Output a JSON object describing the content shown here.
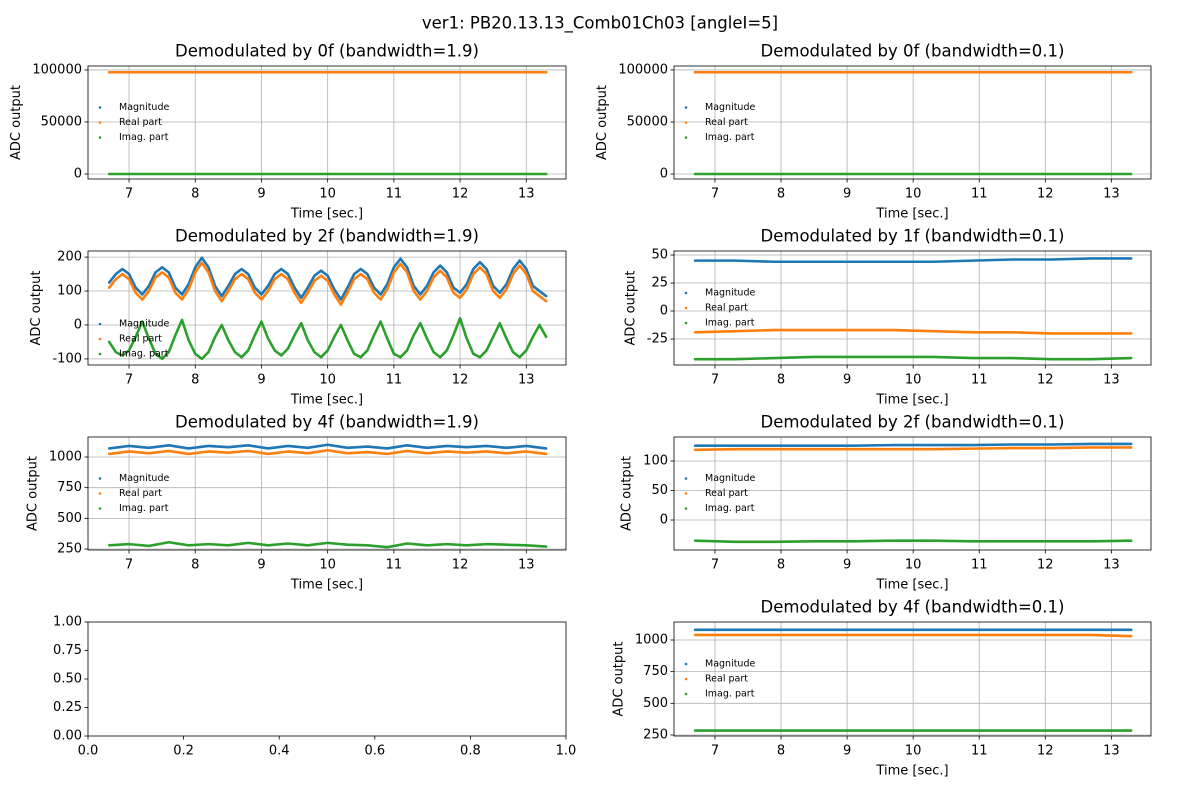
{
  "title": "ver1: PB20.13.13_Comb01Ch03 [angleI=5]",
  "chart_data": [
    {
      "type": "line",
      "title": "Demodulated by 0f (bandwidth=1.9)",
      "xlabel": "Time [sec.]",
      "ylabel": "ADC output",
      "grid": true,
      "legend": "center left",
      "xlim": [
        6.38,
        13.6
      ],
      "xticks": [
        7,
        8,
        9,
        10,
        11,
        12,
        13
      ],
      "ylim": [
        -4800,
        103800
      ],
      "yticks": [
        0,
        50000,
        100000
      ],
      "x": [
        6.7,
        7.3,
        7.9,
        8.5,
        9.1,
        9.7,
        10.3,
        10.9,
        11.5,
        12.1,
        12.7,
        13.3
      ],
      "series": [
        {
          "name": "Magnitude",
          "color": "#1f77b4",
          "values": [
            97800,
            97800,
            97800,
            97800,
            97800,
            97800,
            97800,
            97800,
            97800,
            97800,
            97800,
            97800
          ]
        },
        {
          "name": "Real part",
          "color": "#ff7f0e",
          "values": [
            97800,
            97800,
            97800,
            97800,
            97800,
            97800,
            97800,
            97800,
            97800,
            97800,
            97800,
            97800
          ]
        },
        {
          "name": "Imag. part",
          "color": "#2ca02c",
          "values": [
            0,
            0,
            0,
            0,
            0,
            0,
            0,
            0,
            0,
            0,
            0,
            0
          ]
        }
      ]
    },
    {
      "type": "line",
      "title": "Demodulated by 0f (bandwidth=0.1)",
      "xlabel": "Time [sec.]",
      "ylabel": "ADC output",
      "grid": true,
      "legend": "center left",
      "xlim": [
        6.38,
        13.6
      ],
      "xticks": [
        7,
        8,
        9,
        10,
        11,
        12,
        13
      ],
      "ylim": [
        -4800,
        103800
      ],
      "yticks": [
        0,
        50000,
        100000
      ],
      "x": [
        6.7,
        7.3,
        7.9,
        8.5,
        9.1,
        9.7,
        10.3,
        10.9,
        11.5,
        12.1,
        12.7,
        13.3
      ],
      "series": [
        {
          "name": "Magnitude",
          "color": "#1f77b4",
          "values": [
            97800,
            97800,
            97800,
            97800,
            97800,
            97800,
            97800,
            97800,
            97800,
            97800,
            97800,
            97800
          ]
        },
        {
          "name": "Real part",
          "color": "#ff7f0e",
          "values": [
            97800,
            97800,
            97800,
            97800,
            97800,
            97800,
            97800,
            97800,
            97800,
            97800,
            97800,
            97800
          ]
        },
        {
          "name": "Imag. part",
          "color": "#2ca02c",
          "values": [
            0,
            0,
            0,
            0,
            0,
            0,
            0,
            0,
            0,
            0,
            0,
            0
          ]
        }
      ]
    },
    {
      "type": "line",
      "title": "Demodulated by 2f (bandwidth=1.9)",
      "xlabel": "Time [sec.]",
      "ylabel": "ADC output",
      "grid": true,
      "legend": "lower left",
      "xlim": [
        6.38,
        13.6
      ],
      "xticks": [
        7,
        8,
        9,
        10,
        11,
        12,
        13
      ],
      "ylim": [
        -118,
        218
      ],
      "yticks": [
        -100,
        0,
        100,
        200
      ],
      "x": [
        6.7,
        6.8,
        6.9,
        7.0,
        7.1,
        7.2,
        7.3,
        7.4,
        7.5,
        7.6,
        7.7,
        7.8,
        7.9,
        8.0,
        8.1,
        8.2,
        8.3,
        8.4,
        8.5,
        8.6,
        8.7,
        8.8,
        8.9,
        9.0,
        9.1,
        9.2,
        9.3,
        9.4,
        9.5,
        9.6,
        9.7,
        9.8,
        9.9,
        10.0,
        10.1,
        10.2,
        10.3,
        10.4,
        10.5,
        10.6,
        10.7,
        10.8,
        10.9,
        11.0,
        11.1,
        11.2,
        11.3,
        11.4,
        11.5,
        11.6,
        11.7,
        11.8,
        11.9,
        12.0,
        12.1,
        12.2,
        12.3,
        12.4,
        12.5,
        12.6,
        12.7,
        12.8,
        12.9,
        13.0,
        13.1,
        13.2,
        13.3
      ],
      "series": [
        {
          "name": "Magnitude",
          "color": "#1f77b4",
          "values": [
            125,
            150,
            165,
            150,
            110,
            90,
            115,
            155,
            170,
            155,
            110,
            90,
            120,
            170,
            198,
            170,
            115,
            85,
            115,
            150,
            165,
            150,
            110,
            90,
            115,
            150,
            165,
            150,
            110,
            80,
            110,
            145,
            160,
            145,
            105,
            75,
            110,
            150,
            165,
            150,
            110,
            90,
            120,
            170,
            195,
            170,
            115,
            90,
            115,
            155,
            175,
            155,
            110,
            95,
            120,
            165,
            185,
            165,
            115,
            95,
            120,
            165,
            190,
            165,
            115,
            100,
            85
          ]
        },
        {
          "name": "Real part",
          "color": "#ff7f0e",
          "values": [
            110,
            135,
            150,
            135,
            95,
            75,
            100,
            140,
            155,
            140,
            95,
            75,
            105,
            155,
            183,
            155,
            100,
            70,
            100,
            135,
            150,
            135,
            95,
            75,
            100,
            135,
            150,
            135,
            95,
            65,
            95,
            130,
            145,
            130,
            90,
            60,
            95,
            135,
            150,
            135,
            95,
            75,
            105,
            155,
            180,
            155,
            100,
            75,
            100,
            140,
            160,
            140,
            95,
            80,
            105,
            150,
            170,
            150,
            100,
            80,
            105,
            150,
            175,
            150,
            100,
            85,
            70
          ]
        },
        {
          "name": "Imag. part",
          "color": "#2ca02c",
          "values": [
            -50,
            -80,
            -90,
            -75,
            -35,
            10,
            -40,
            -85,
            -100,
            -80,
            -30,
            15,
            -45,
            -85,
            -100,
            -80,
            -35,
            0,
            -45,
            -80,
            -95,
            -75,
            -30,
            10,
            -40,
            -75,
            -90,
            -70,
            -30,
            5,
            -45,
            -80,
            -95,
            -75,
            -35,
            0,
            -45,
            -85,
            -95,
            -75,
            -30,
            10,
            -40,
            -85,
            -95,
            -75,
            -30,
            5,
            -40,
            -80,
            -95,
            -75,
            -30,
            20,
            -40,
            -85,
            -95,
            -75,
            -35,
            5,
            -40,
            -80,
            -95,
            -75,
            -35,
            0,
            -35
          ]
        }
      ]
    },
    {
      "type": "line",
      "title": "Demodulated by 1f (bandwidth=0.1)",
      "xlabel": "Time [sec.]",
      "ylabel": "ADC output",
      "grid": true,
      "legend": "center left",
      "xlim": [
        6.38,
        13.6
      ],
      "xticks": [
        7,
        8,
        9,
        10,
        11,
        12,
        13
      ],
      "ylim": [
        -48.2,
        53.6
      ],
      "yticks": [
        -25,
        0,
        25,
        50
      ],
      "x": [
        6.7,
        7.3,
        7.9,
        8.5,
        9.1,
        9.7,
        10.3,
        10.9,
        11.5,
        12.1,
        12.7,
        13.3
      ],
      "series": [
        {
          "name": "Magnitude",
          "color": "#1f77b4",
          "values": [
            45,
            45,
            44,
            44,
            44,
            44,
            44,
            45,
            46,
            46,
            47,
            47
          ]
        },
        {
          "name": "Real part",
          "color": "#ff7f0e",
          "values": [
            -19,
            -18,
            -17,
            -17,
            -17,
            -17,
            -18,
            -19,
            -19,
            -20,
            -20,
            -20
          ]
        },
        {
          "name": "Imag. part",
          "color": "#2ca02c",
          "values": [
            -43,
            -43,
            -42,
            -41,
            -41,
            -41,
            -41,
            -42,
            -42,
            -43,
            -43,
            -42
          ]
        }
      ]
    },
    {
      "type": "line",
      "title": "Demodulated by 4f (bandwidth=1.9)",
      "xlabel": "Time [sec.]",
      "ylabel": "ADC output",
      "grid": true,
      "legend": "center left",
      "xlim": [
        6.38,
        13.6
      ],
      "xticks": [
        7,
        8,
        9,
        10,
        11,
        12,
        13
      ],
      "ylim": [
        242,
        1163
      ],
      "yticks": [
        250,
        500,
        750,
        1000
      ],
      "x": [
        6.7,
        7.0,
        7.3,
        7.6,
        7.9,
        8.2,
        8.5,
        8.8,
        9.1,
        9.4,
        9.7,
        10.0,
        10.3,
        10.6,
        10.9,
        11.2,
        11.5,
        11.8,
        12.1,
        12.4,
        12.7,
        13.0,
        13.3
      ],
      "series": [
        {
          "name": "Magnitude",
          "color": "#1f77b4",
          "values": [
            1070,
            1090,
            1075,
            1095,
            1070,
            1090,
            1080,
            1095,
            1070,
            1090,
            1075,
            1100,
            1075,
            1085,
            1070,
            1095,
            1075,
            1090,
            1080,
            1090,
            1075,
            1090,
            1070
          ]
        },
        {
          "name": "Real part",
          "color": "#ff7f0e",
          "values": [
            1025,
            1045,
            1030,
            1050,
            1025,
            1045,
            1035,
            1050,
            1025,
            1045,
            1030,
            1055,
            1030,
            1040,
            1025,
            1050,
            1030,
            1045,
            1035,
            1045,
            1030,
            1045,
            1025
          ]
        },
        {
          "name": "Imag. part",
          "color": "#2ca02c",
          "values": [
            280,
            290,
            275,
            305,
            280,
            290,
            280,
            300,
            280,
            295,
            280,
            300,
            285,
            280,
            265,
            295,
            280,
            290,
            280,
            290,
            285,
            280,
            270
          ]
        }
      ]
    },
    {
      "type": "line",
      "title": "Demodulated by 2f (bandwidth=0.1)",
      "xlabel": "Time [sec.]",
      "ylabel": "ADC output",
      "grid": true,
      "legend": "center left",
      "xlim": [
        6.38,
        13.6
      ],
      "xticks": [
        7,
        8,
        9,
        10,
        11,
        12,
        13
      ],
      "ylim": [
        -50.8,
        140.7
      ],
      "yticks": [
        0,
        50,
        100
      ],
      "x": [
        6.7,
        7.3,
        7.9,
        8.5,
        9.1,
        9.7,
        10.3,
        10.9,
        11.5,
        12.1,
        12.7,
        13.3
      ],
      "series": [
        {
          "name": "Magnitude",
          "color": "#1f77b4",
          "values": [
            126,
            126,
            126,
            126,
            126,
            127,
            127,
            127,
            128,
            128,
            129,
            129
          ]
        },
        {
          "name": "Real part",
          "color": "#ff7f0e",
          "values": [
            119,
            120,
            120,
            120,
            120,
            120,
            120,
            121,
            122,
            122,
            123,
            123
          ]
        },
        {
          "name": "Imag. part",
          "color": "#2ca02c",
          "values": [
            -35,
            -37,
            -37,
            -36,
            -36,
            -35,
            -35,
            -36,
            -36,
            -36,
            -36,
            -35
          ]
        }
      ]
    },
    {
      "type": "line",
      "grid": false,
      "xlim": [
        0,
        1
      ],
      "xticks": [
        {
          "value": 0,
          "label": "0.0"
        },
        {
          "value": 0.2,
          "label": "0.2"
        },
        {
          "value": 0.4,
          "label": "0.4"
        },
        {
          "value": 0.6,
          "label": "0.6"
        },
        {
          "value": 0.8,
          "label": "0.8"
        },
        {
          "value": 1,
          "label": "1.0"
        }
      ],
      "ylim": [
        0,
        1
      ],
      "yticks": [
        {
          "value": 0,
          "label": "0.00"
        },
        {
          "value": 0.25,
          "label": "0.25"
        },
        {
          "value": 0.5,
          "label": "0.50"
        },
        {
          "value": 0.75,
          "label": "0.75"
        },
        {
          "value": 1,
          "label": "1.00"
        }
      ]
    },
    {
      "type": "line",
      "title": "Demodulated by 4f (bandwidth=0.1)",
      "xlabel": "Time [sec.]",
      "ylabel": "ADC output",
      "grid": true,
      "legend": "center left",
      "xlim": [
        6.38,
        13.6
      ],
      "xticks": [
        7,
        8,
        9,
        10,
        11,
        12,
        13
      ],
      "ylim": [
        242,
        1142
      ],
      "yticks": [
        250,
        500,
        750,
        1000
      ],
      "x": [
        6.7,
        7.3,
        7.9,
        8.5,
        9.1,
        9.7,
        10.3,
        10.9,
        11.5,
        12.1,
        12.7,
        13.3
      ],
      "series": [
        {
          "name": "Magnitude",
          "color": "#1f77b4",
          "values": [
            1080,
            1080,
            1080,
            1080,
            1080,
            1080,
            1080,
            1080,
            1080,
            1080,
            1080,
            1080
          ]
        },
        {
          "name": "Real part",
          "color": "#ff7f0e",
          "values": [
            1040,
            1040,
            1040,
            1040,
            1040,
            1040,
            1040,
            1040,
            1040,
            1040,
            1040,
            1030
          ]
        },
        {
          "name": "Imag. part",
          "color": "#2ca02c",
          "values": [
            285,
            285,
            285,
            285,
            285,
            285,
            285,
            285,
            285,
            285,
            285,
            285
          ]
        }
      ]
    }
  ]
}
